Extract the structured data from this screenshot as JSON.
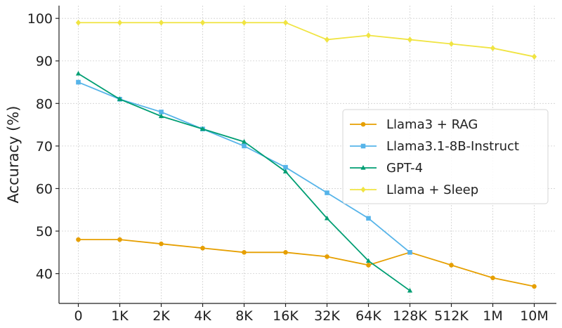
{
  "chart_data": {
    "type": "line",
    "title": "",
    "xlabel": "",
    "ylabel": "Accuracy (%)",
    "categories": [
      "0",
      "1K",
      "2K",
      "4K",
      "8K",
      "16K",
      "32K",
      "64K",
      "128K",
      "512K",
      "1M",
      "10M"
    ],
    "ylim": [
      33,
      103
    ],
    "yticks": [
      40,
      50,
      60,
      70,
      80,
      90,
      100
    ],
    "grid": true,
    "legend_position": "center-right",
    "series": [
      {
        "name": "Llama3 + RAG",
        "color": "#e69f00",
        "marker": "circle",
        "values": [
          48,
          48,
          47,
          46,
          45,
          45,
          44,
          42,
          45,
          42,
          39,
          37
        ]
      },
      {
        "name": "Llama3.1-8B-Instruct",
        "color": "#56b4e9",
        "marker": "square",
        "values": [
          85,
          81,
          78,
          74,
          70,
          65,
          59,
          53,
          45,
          null,
          null,
          null
        ]
      },
      {
        "name": "GPT-4",
        "color": "#009e73",
        "marker": "triangle",
        "values": [
          87,
          81,
          77,
          74,
          71,
          64,
          53,
          43,
          36,
          null,
          null,
          null
        ]
      },
      {
        "name": "Llama + Sleep",
        "color": "#f0e442",
        "marker": "diamond",
        "values": [
          99,
          99,
          99,
          99,
          99,
          99,
          95,
          96,
          95,
          94,
          93,
          91
        ]
      }
    ]
  }
}
